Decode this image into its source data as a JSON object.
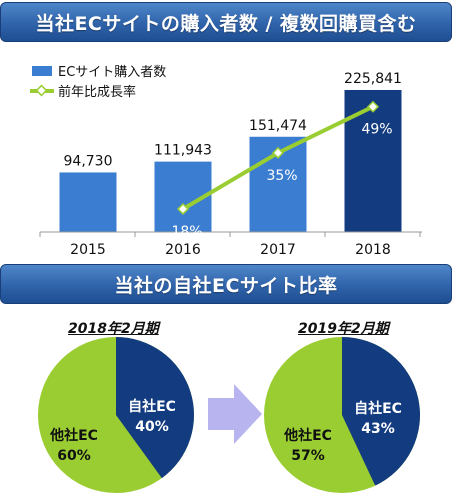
{
  "header_title": "当社ECサイトの購入者数 / 複数回購買含む",
  "section_title": "当社の自社ECサイト比率",
  "colors": {
    "bar_light": "#3b7dd0",
    "bar_dark": "#123b80",
    "line": "#9acd32",
    "pie_own": "#123b80",
    "pie_other": "#9acd32",
    "arrow": "#b7b4f0"
  },
  "chart_data": [
    {
      "type": "bar",
      "categories": [
        "2015",
        "2016",
        "2017",
        "2018"
      ],
      "series": [
        {
          "name": "ECサイト購入者数",
          "type": "bar",
          "values": [
            94730,
            111943,
            151474,
            225841
          ],
          "labels": [
            "94,730",
            "111,943",
            "151,474",
            "225,841"
          ]
        },
        {
          "name": "前年比成長率",
          "type": "line",
          "values": [
            null,
            18,
            35,
            49
          ],
          "labels": [
            "",
            "18%",
            "35%",
            "49%"
          ]
        }
      ],
      "legend": "top-left",
      "grid": false
    },
    {
      "type": "pie",
      "title": "2018年2月期",
      "slices": [
        {
          "label": "自社EC",
          "value": 40,
          "value_label": "40%"
        },
        {
          "label": "他社EC",
          "value": 60,
          "value_label": "60%"
        }
      ]
    },
    {
      "type": "pie",
      "title": "2019年2月期",
      "slices": [
        {
          "label": "自社EC",
          "value": 43,
          "value_label": "43%"
        },
        {
          "label": "他社EC",
          "value": 57,
          "value_label": "57%"
        }
      ]
    }
  ]
}
